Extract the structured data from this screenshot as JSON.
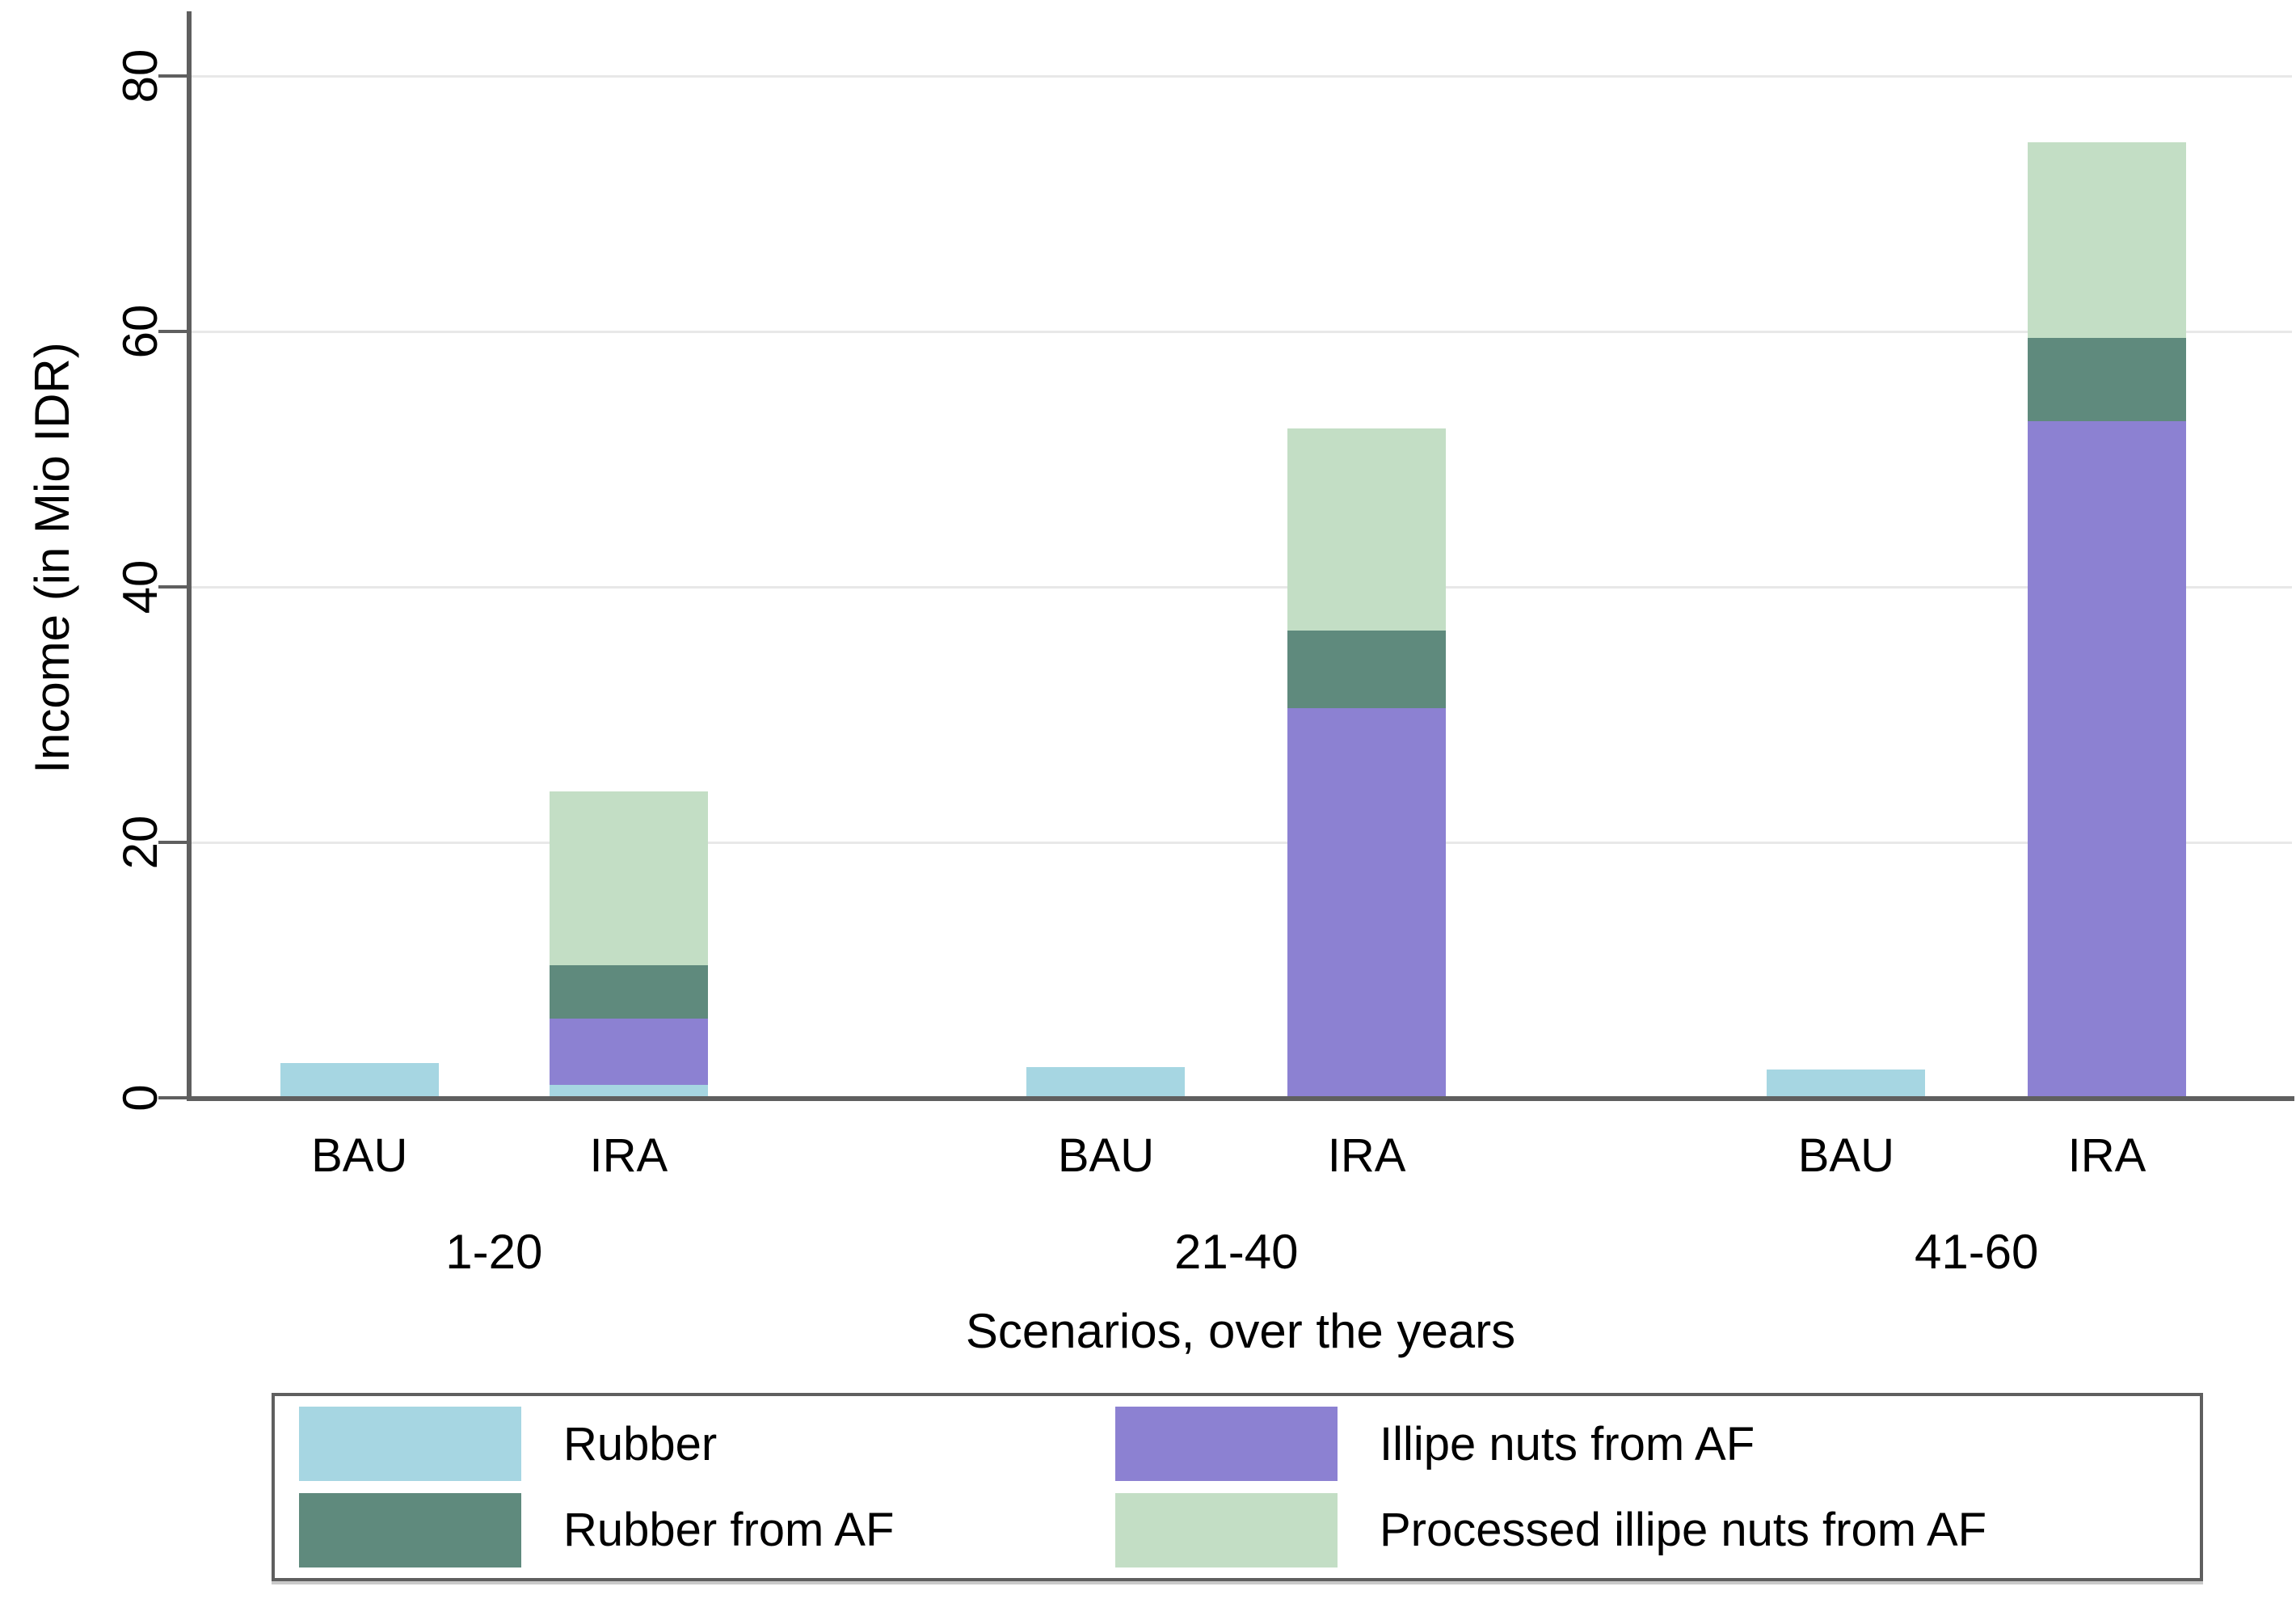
{
  "chart_data": {
    "type": "bar",
    "stacked": true,
    "title": "",
    "xlabel": "Scenarios, over the years",
    "ylabel": "Income (in Mio IDR)",
    "ylim": [
      0,
      84
    ],
    "yticks": [
      0,
      20,
      40,
      60,
      80
    ],
    "grid": "horizontal",
    "legend_position": "bottom, boxed, 2 columns",
    "groups": [
      "1-20",
      "21-40",
      "41-60"
    ],
    "categories": [
      {
        "group": "1-20",
        "label": "BAU"
      },
      {
        "group": "1-20",
        "label": "IRA"
      },
      {
        "group": "21-40",
        "label": "BAU"
      },
      {
        "group": "21-40",
        "label": "IRA"
      },
      {
        "group": "41-60",
        "label": "BAU"
      },
      {
        "group": "41-60",
        "label": "IRA"
      }
    ],
    "series": [
      {
        "name": "Rubber",
        "color": "#a6d6e2",
        "values": [
          2.7,
          1.0,
          2.4,
          0,
          2.2,
          0
        ]
      },
      {
        "name": "Illipe nuts from AF",
        "color": "#8c81d2",
        "values": [
          0,
          5.2,
          0,
          30.5,
          0,
          53.0
        ]
      },
      {
        "name": "Rubber from AF",
        "color": "#5f8a7d",
        "values": [
          0,
          4.2,
          0,
          6.1,
          0,
          6.5
        ]
      },
      {
        "name": "Processed illipe nuts from AF",
        "color": "#c3dec5",
        "values": [
          0,
          13.6,
          0,
          15.8,
          0,
          15.3
        ]
      }
    ],
    "legend_order": [
      "Rubber",
      "Rubber from AF",
      "Illipe nuts from AF",
      "Processed illipe nuts from AF"
    ]
  },
  "colors": {
    "axis": "#5f5f5f",
    "gridline": "#e8e8e8",
    "text": "#000000",
    "background": "#ffffff"
  }
}
